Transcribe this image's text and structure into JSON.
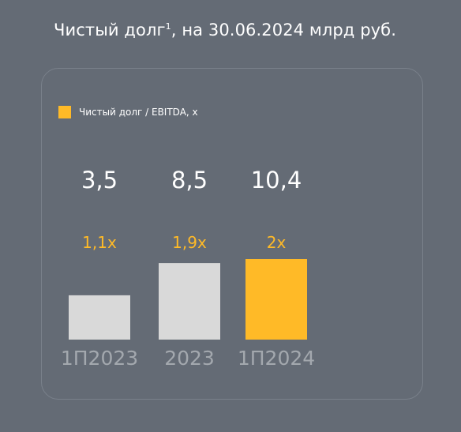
{
  "header": {
    "title": "Чистый долг",
    "title_sup": "1",
    "title_rest": ", на 30.06.2024  млрд руб."
  },
  "legend": {
    "label": "Чистый долг / EBITDA, х",
    "color": "#ffba27"
  },
  "colors": {
    "bar_default": "#d9d9d9",
    "bar_highlight": "#ffba27",
    "ratio_text": "#ffba27"
  },
  "chart_data": {
    "type": "bar",
    "categories": [
      "1П2023",
      "2023",
      "1П2024"
    ],
    "series": [
      {
        "name": "",
        "values": [
          3.5,
          8.5,
          10.4
        ],
        "labels": [
          "3,5",
          "8,5",
          "10,4"
        ]
      },
      {
        "name": "Чистый долг / EBITDA, х",
        "values": [
          1.1,
          1.9,
          2.0
        ],
        "labels": [
          "1,1х",
          "1,9х",
          "2х"
        ]
      }
    ],
    "highlight_category": "1П2024",
    "title": "Чистый долг¹, на 30.06.2024  млрд руб.",
    "xlabel": "",
    "ylabel": "",
    "grid": false,
    "legend_position": "top-left"
  }
}
